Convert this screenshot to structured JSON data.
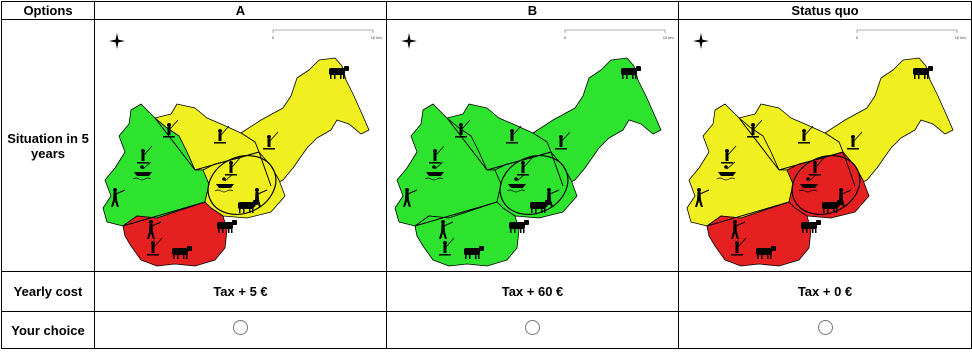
{
  "header": {
    "options": "Options",
    "a": "A",
    "b": "B",
    "status_quo": "Status quo"
  },
  "rows": {
    "situation": "Situation in 5 years",
    "yearly_cost": "Yearly cost",
    "your_choice": "Your choice"
  },
  "scale": {
    "zero": "0",
    "ten": "10",
    "unit": "km"
  },
  "options": [
    {
      "cost": "Tax + 5 €",
      "zones": {
        "west": "#2ee32e",
        "north": "#f0f020",
        "center": "#f0f020",
        "east": "#f0f020",
        "south": "#e52020"
      }
    },
    {
      "cost": "Tax + 60 €",
      "zones": {
        "west": "#2ee32e",
        "north": "#2ee32e",
        "center": "#2ee32e",
        "east": "#2ee32e",
        "south": "#2ee32e"
      }
    },
    {
      "cost": "Tax + 0 €",
      "zones": {
        "west": "#f0f020",
        "north": "#f0f020",
        "center": "#e52020",
        "east": "#f0f020",
        "south": "#e52020"
      }
    }
  ],
  "icons": [
    "north-arrow-icon",
    "fisherman-icon",
    "boat-icon",
    "hunter-icon",
    "cow-icon"
  ]
}
